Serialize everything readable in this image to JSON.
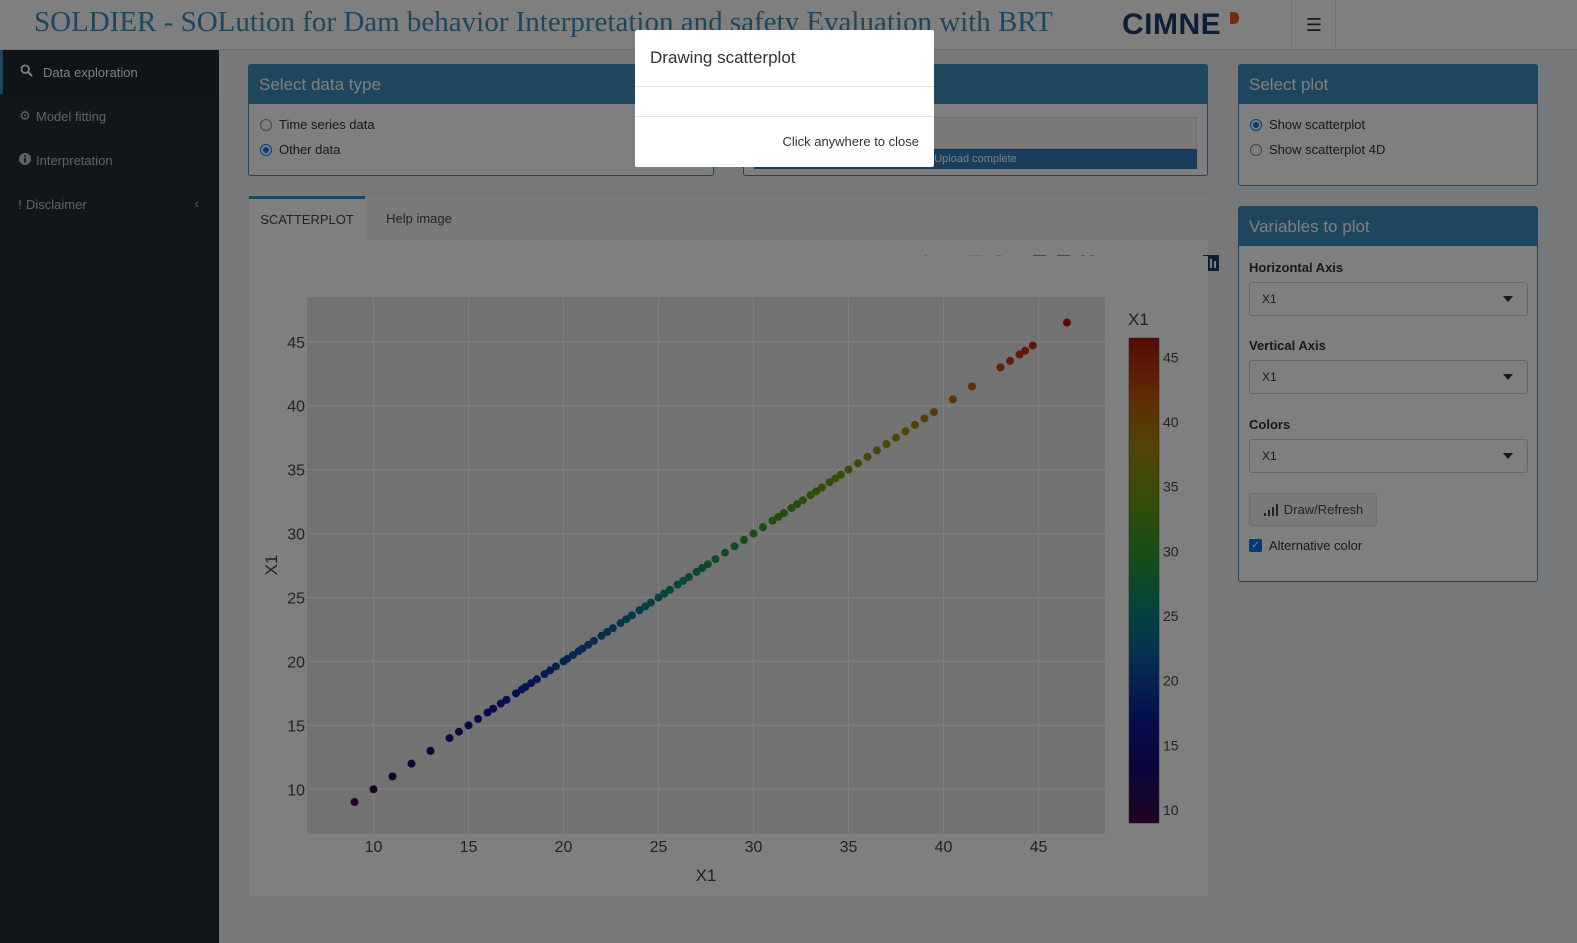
{
  "header": {
    "title": "SOLDIER - SOLution for Dam behavior Interpretation and safety Evaluation with BRT",
    "logo": "CIMNE",
    "menu_icon": "hamburger-icon"
  },
  "sidebar": {
    "items": [
      {
        "label": "Data exploration",
        "icon": "search-icon"
      },
      {
        "label": "Model fitting",
        "icon": "gear-icon"
      },
      {
        "label": "Interpretation",
        "icon": "info-icon"
      },
      {
        "label": "Disclaimer",
        "icon": "exclamation-icon"
      }
    ]
  },
  "data_type": {
    "title": "Select data type",
    "options": [
      "Time series data",
      "Other data"
    ],
    "selected": "Other data"
  },
  "upload": {
    "status": "Upload complete"
  },
  "select_plot": {
    "title": "Select plot",
    "options": [
      "Show scatterplot",
      "Show scatterplot 4D"
    ],
    "selected": "Show scatterplot"
  },
  "variables": {
    "title": "Variables to plot",
    "horizontal_label": "Horizontal Axis",
    "horizontal_value": "X1",
    "vertical_label": "Vertical Axis",
    "vertical_value": "X1",
    "colors_label": "Colors",
    "colors_value": "X1",
    "draw_button": "Draw/Refresh",
    "alt_color_label": "Alternative color",
    "alt_color_checked": true
  },
  "tabs": [
    "SCATTERPLOT",
    "Help image"
  ],
  "modal": {
    "title": "Drawing scatterplot",
    "footer": "Click anywhere to close"
  },
  "chart_data": {
    "type": "scatter",
    "xlabel": "X1",
    "ylabel": "X1",
    "colorbar_title": "X1",
    "xlim": [
      6.5,
      48.5
    ],
    "ylim": [
      6.5,
      48.5
    ],
    "x_ticks": [
      10,
      15,
      20,
      25,
      30,
      35,
      40,
      45
    ],
    "y_ticks": [
      10,
      15,
      20,
      25,
      30,
      35,
      40,
      45
    ],
    "colorbar_ticks": [
      10,
      15,
      20,
      25,
      30,
      35,
      40,
      45
    ],
    "colorbar_range": [
      9,
      46.5
    ],
    "colorscale": [
      "#3d0a42",
      "#160a76",
      "#0a1f9c",
      "#0a5aa6",
      "#0b8a7a",
      "#2e9a2a",
      "#6a9c12",
      "#a88a0a",
      "#c2500a",
      "#a8140a"
    ],
    "x": [
      9,
      10,
      11,
      12,
      13,
      14,
      14.5,
      15,
      15.5,
      16,
      16.3,
      16.7,
      17,
      17.5,
      17.8,
      18,
      18.3,
      18.6,
      19,
      19.3,
      19.6,
      20,
      20.2,
      20.5,
      20.8,
      21,
      21.3,
      21.6,
      22,
      22.3,
      22.6,
      23,
      23.3,
      23.6,
      24,
      24.3,
      24.6,
      25,
      25.3,
      25.6,
      26,
      26.3,
      26.6,
      27,
      27.3,
      27.6,
      28,
      28.5,
      29,
      29.5,
      30,
      30.5,
      31,
      31.3,
      31.6,
      32,
      32.3,
      32.6,
      33,
      33.3,
      33.6,
      34,
      34.3,
      34.6,
      35,
      35.5,
      36,
      36.5,
      37,
      37.5,
      38,
      38.5,
      39,
      39.5,
      40.5,
      41.5,
      43,
      43.5,
      44,
      44.3,
      44.7,
      46.5
    ],
    "y": [
      9,
      10,
      11,
      12,
      13,
      14,
      14.5,
      15,
      15.5,
      16,
      16.3,
      16.7,
      17,
      17.5,
      17.8,
      18,
      18.3,
      18.6,
      19,
      19.3,
      19.6,
      20,
      20.2,
      20.5,
      20.8,
      21,
      21.3,
      21.6,
      22,
      22.3,
      22.6,
      23,
      23.3,
      23.6,
      24,
      24.3,
      24.6,
      25,
      25.3,
      25.6,
      26,
      26.3,
      26.6,
      27,
      27.3,
      27.6,
      28,
      28.5,
      29,
      29.5,
      30,
      30.5,
      31,
      31.3,
      31.6,
      32,
      32.3,
      32.6,
      33,
      33.3,
      33.6,
      34,
      34.3,
      34.6,
      35,
      35.5,
      36,
      36.5,
      37,
      37.5,
      38,
      38.5,
      39,
      39.5,
      40.5,
      41.5,
      43,
      43.5,
      44,
      44.3,
      44.7,
      46.5
    ],
    "background": "#e5e5e5",
    "grid": true
  }
}
